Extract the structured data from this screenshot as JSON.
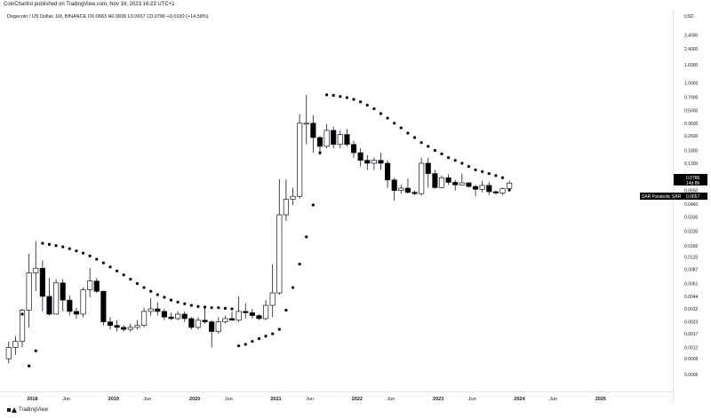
{
  "header": {
    "published": "CoinChartist published on TradingView.com, Nov 16, 2023 16:23 UTC+1"
  },
  "info": {
    "symbol": "Dogecoin / US Dollar, 1M, BINANCE",
    "open": "O0.0683",
    "high": "H0.0836",
    "low": "L0.0657",
    "close": "C0.0786",
    "change": "+0.0100 (+14.58%)"
  },
  "footer": {
    "brand": "TradingView"
  },
  "price_tag": {
    "value": "0.0786",
    "countdown": "14d 8h"
  },
  "sar_tag": {
    "label": "SAR Parabolic SAR",
    "value": "0.0657"
  },
  "colors": {
    "bull_body": "#ffffff",
    "bear_body": "#000000",
    "wick": "#131722",
    "sar": "#000000",
    "tag_bg": "#000000"
  },
  "chart_data": {
    "type": "candlestick",
    "title": "",
    "y_axis": {
      "unit": "USD",
      "scale": "log",
      "ticks": [
        "3.4000",
        "2.4000",
        "1.6000",
        "1.0000",
        "0.7000",
        "0.5000",
        "0.3600",
        "0.2600",
        "0.1800",
        "0.1300",
        "0.0900",
        "0.0650",
        "0.0460",
        "0.0330",
        "0.0230",
        "0.0160",
        "0.0120",
        "0.0087",
        "0.0061",
        "0.0044",
        "0.0032",
        "0.0023",
        "0.0017",
        "0.0012",
        "0.0009",
        "0.0006"
      ],
      "tick_values": [
        3.4,
        2.4,
        1.6,
        1.0,
        0.7,
        0.5,
        0.36,
        0.26,
        0.18,
        0.13,
        0.09,
        0.065,
        0.046,
        0.033,
        0.023,
        0.016,
        0.012,
        0.0087,
        0.0061,
        0.0044,
        0.0032,
        0.0023,
        0.0017,
        0.0012,
        0.0009,
        0.0006
      ],
      "range": [
        0.00042,
        4.2
      ]
    },
    "x_axis": {
      "labels": [
        {
          "text": "2018",
          "date": "2018-01",
          "major": true
        },
        {
          "text": "Jun",
          "date": "2018-06",
          "major": false
        },
        {
          "text": "2019",
          "date": "2019-01",
          "major": true
        },
        {
          "text": "Jun",
          "date": "2019-06",
          "major": false
        },
        {
          "text": "2020",
          "date": "2020-01",
          "major": true
        },
        {
          "text": "Jun",
          "date": "2020-06",
          "major": false
        },
        {
          "text": "2021",
          "date": "2021-01",
          "major": true
        },
        {
          "text": "Jun",
          "date": "2021-06",
          "major": false
        },
        {
          "text": "2022",
          "date": "2022-01",
          "major": true
        },
        {
          "text": "Jun",
          "date": "2022-06",
          "major": false
        },
        {
          "text": "2023",
          "date": "2023-01",
          "major": true
        },
        {
          "text": "Jun",
          "date": "2023-06",
          "major": false
        },
        {
          "text": "2024",
          "date": "2024-01",
          "major": true
        },
        {
          "text": "Jun",
          "date": "2024-06",
          "major": false
        },
        {
          "text": "2025",
          "date": "2025-01",
          "major": true
        }
      ],
      "start": "2017-09",
      "end": "2025-10"
    },
    "candles": [
      {
        "date": "2017-09",
        "o": 0.0009,
        "h": 0.0014,
        "l": 0.0008,
        "c": 0.0012
      },
      {
        "date": "2017-10",
        "o": 0.0012,
        "h": 0.0016,
        "l": 0.001,
        "c": 0.0014
      },
      {
        "date": "2017-11",
        "o": 0.0014,
        "h": 0.0032,
        "l": 0.0012,
        "c": 0.0031
      },
      {
        "date": "2017-12",
        "o": 0.0031,
        "h": 0.013,
        "l": 0.002,
        "c": 0.008
      },
      {
        "date": "2018-01",
        "o": 0.008,
        "h": 0.018,
        "l": 0.005,
        "c": 0.009
      },
      {
        "date": "2018-02",
        "o": 0.009,
        "h": 0.011,
        "l": 0.003,
        "c": 0.0044
      },
      {
        "date": "2018-03",
        "o": 0.0044,
        "h": 0.007,
        "l": 0.0027,
        "c": 0.0028
      },
      {
        "date": "2018-04",
        "o": 0.0028,
        "h": 0.0068,
        "l": 0.0028,
        "c": 0.0062
      },
      {
        "date": "2018-05",
        "o": 0.0062,
        "h": 0.0068,
        "l": 0.003,
        "c": 0.004
      },
      {
        "date": "2018-06",
        "o": 0.004,
        "h": 0.0045,
        "l": 0.0027,
        "c": 0.003
      },
      {
        "date": "2018-07",
        "o": 0.003,
        "h": 0.0033,
        "l": 0.0025,
        "c": 0.0028
      },
      {
        "date": "2018-08",
        "o": 0.0028,
        "h": 0.0055,
        "l": 0.0026,
        "c": 0.0052
      },
      {
        "date": "2018-09",
        "o": 0.0052,
        "h": 0.009,
        "l": 0.0043,
        "c": 0.0065
      },
      {
        "date": "2018-10",
        "o": 0.0065,
        "h": 0.007,
        "l": 0.0048,
        "c": 0.005
      },
      {
        "date": "2018-11",
        "o": 0.005,
        "h": 0.0051,
        "l": 0.0021,
        "c": 0.0023
      },
      {
        "date": "2018-12",
        "o": 0.0023,
        "h": 0.0026,
        "l": 0.0019,
        "c": 0.0021
      },
      {
        "date": "2019-01",
        "o": 0.0021,
        "h": 0.0024,
        "l": 0.0018,
        "c": 0.002
      },
      {
        "date": "2019-02",
        "o": 0.002,
        "h": 0.0021,
        "l": 0.0018,
        "c": 0.0019
      },
      {
        "date": "2019-03",
        "o": 0.0019,
        "h": 0.0022,
        "l": 0.0018,
        "c": 0.002
      },
      {
        "date": "2019-04",
        "o": 0.002,
        "h": 0.0024,
        "l": 0.0019,
        "c": 0.0021
      },
      {
        "date": "2019-05",
        "o": 0.0021,
        "h": 0.0033,
        "l": 0.002,
        "c": 0.003
      },
      {
        "date": "2019-06",
        "o": 0.003,
        "h": 0.0042,
        "l": 0.0027,
        "c": 0.0032
      },
      {
        "date": "2019-07",
        "o": 0.0032,
        "h": 0.0038,
        "l": 0.0027,
        "c": 0.003
      },
      {
        "date": "2019-08",
        "o": 0.003,
        "h": 0.0032,
        "l": 0.0024,
        "c": 0.0026
      },
      {
        "date": "2019-09",
        "o": 0.0026,
        "h": 0.0029,
        "l": 0.0024,
        "c": 0.0025
      },
      {
        "date": "2019-10",
        "o": 0.0025,
        "h": 0.003,
        "l": 0.0024,
        "c": 0.0028
      },
      {
        "date": "2019-11",
        "o": 0.0028,
        "h": 0.003,
        "l": 0.0023,
        "c": 0.0025
      },
      {
        "date": "2019-12",
        "o": 0.0025,
        "h": 0.0026,
        "l": 0.0019,
        "c": 0.002
      },
      {
        "date": "2020-01",
        "o": 0.002,
        "h": 0.0026,
        "l": 0.0019,
        "c": 0.0024
      },
      {
        "date": "2020-02",
        "o": 0.0024,
        "h": 0.0033,
        "l": 0.0022,
        "c": 0.0023
      },
      {
        "date": "2020-03",
        "o": 0.0023,
        "h": 0.0024,
        "l": 0.0012,
        "c": 0.0018
      },
      {
        "date": "2020-04",
        "o": 0.0018,
        "h": 0.0026,
        "l": 0.0017,
        "c": 0.0023
      },
      {
        "date": "2020-05",
        "o": 0.0023,
        "h": 0.0027,
        "l": 0.0022,
        "c": 0.0025
      },
      {
        "date": "2020-06",
        "o": 0.0025,
        "h": 0.003,
        "l": 0.0024,
        "c": 0.0024
      },
      {
        "date": "2020-07",
        "o": 0.0024,
        "h": 0.0044,
        "l": 0.0023,
        "c": 0.003
      },
      {
        "date": "2020-08",
        "o": 0.003,
        "h": 0.0037,
        "l": 0.0025,
        "c": 0.0029
      },
      {
        "date": "2020-09",
        "o": 0.0029,
        "h": 0.0032,
        "l": 0.0025,
        "c": 0.0027
      },
      {
        "date": "2020-10",
        "o": 0.0027,
        "h": 0.0028,
        "l": 0.0024,
        "c": 0.0025
      },
      {
        "date": "2020-11",
        "o": 0.0025,
        "h": 0.004,
        "l": 0.0024,
        "c": 0.0035
      },
      {
        "date": "2020-12",
        "o": 0.0035,
        "h": 0.01,
        "l": 0.0026,
        "c": 0.0048
      },
      {
        "date": "2021-01",
        "o": 0.0048,
        "h": 0.087,
        "l": 0.0046,
        "c": 0.035
      },
      {
        "date": "2021-02",
        "o": 0.035,
        "h": 0.087,
        "l": 0.03,
        "c": 0.052
      },
      {
        "date": "2021-03",
        "o": 0.052,
        "h": 0.07,
        "l": 0.045,
        "c": 0.056
      },
      {
        "date": "2021-04",
        "o": 0.056,
        "h": 0.45,
        "l": 0.053,
        "c": 0.36
      },
      {
        "date": "2021-05",
        "o": 0.36,
        "h": 0.74,
        "l": 0.21,
        "c": 0.36
      },
      {
        "date": "2021-06",
        "o": 0.36,
        "h": 0.44,
        "l": 0.17,
        "c": 0.25
      },
      {
        "date": "2021-07",
        "o": 0.25,
        "h": 0.26,
        "l": 0.16,
        "c": 0.2
      },
      {
        "date": "2021-08",
        "o": 0.2,
        "h": 0.35,
        "l": 0.19,
        "c": 0.3
      },
      {
        "date": "2021-09",
        "o": 0.3,
        "h": 0.33,
        "l": 0.19,
        "c": 0.21
      },
      {
        "date": "2021-10",
        "o": 0.21,
        "h": 0.3,
        "l": 0.19,
        "c": 0.27
      },
      {
        "date": "2021-11",
        "o": 0.27,
        "h": 0.31,
        "l": 0.2,
        "c": 0.21
      },
      {
        "date": "2021-12",
        "o": 0.21,
        "h": 0.23,
        "l": 0.15,
        "c": 0.17
      },
      {
        "date": "2022-01",
        "o": 0.17,
        "h": 0.19,
        "l": 0.12,
        "c": 0.14
      },
      {
        "date": "2022-02",
        "o": 0.14,
        "h": 0.16,
        "l": 0.11,
        "c": 0.13
      },
      {
        "date": "2022-03",
        "o": 0.13,
        "h": 0.15,
        "l": 0.11,
        "c": 0.14
      },
      {
        "date": "2022-04",
        "o": 0.14,
        "h": 0.17,
        "l": 0.11,
        "c": 0.13
      },
      {
        "date": "2022-05",
        "o": 0.13,
        "h": 0.14,
        "l": 0.07,
        "c": 0.085
      },
      {
        "date": "2022-06",
        "o": 0.085,
        "h": 0.09,
        "l": 0.05,
        "c": 0.065
      },
      {
        "date": "2022-07",
        "o": 0.065,
        "h": 0.076,
        "l": 0.06,
        "c": 0.069
      },
      {
        "date": "2022-08",
        "o": 0.069,
        "h": 0.088,
        "l": 0.06,
        "c": 0.062
      },
      {
        "date": "2022-09",
        "o": 0.062,
        "h": 0.065,
        "l": 0.058,
        "c": 0.06
      },
      {
        "date": "2022-10",
        "o": 0.06,
        "h": 0.15,
        "l": 0.057,
        "c": 0.13
      },
      {
        "date": "2022-11",
        "o": 0.13,
        "h": 0.15,
        "l": 0.07,
        "c": 0.1
      },
      {
        "date": "2022-12",
        "o": 0.1,
        "h": 0.11,
        "l": 0.068,
        "c": 0.07
      },
      {
        "date": "2023-01",
        "o": 0.07,
        "h": 0.095,
        "l": 0.069,
        "c": 0.09
      },
      {
        "date": "2023-02",
        "o": 0.09,
        "h": 0.098,
        "l": 0.075,
        "c": 0.08
      },
      {
        "date": "2023-03",
        "o": 0.08,
        "h": 0.085,
        "l": 0.065,
        "c": 0.075
      },
      {
        "date": "2023-04",
        "o": 0.075,
        "h": 0.1,
        "l": 0.074,
        "c": 0.079
      },
      {
        "date": "2023-05",
        "o": 0.079,
        "h": 0.08,
        "l": 0.07,
        "c": 0.072
      },
      {
        "date": "2023-06",
        "o": 0.072,
        "h": 0.075,
        "l": 0.056,
        "c": 0.067
      },
      {
        "date": "2023-07",
        "o": 0.067,
        "h": 0.083,
        "l": 0.062,
        "c": 0.074
      },
      {
        "date": "2023-08",
        "o": 0.074,
        "h": 0.081,
        "l": 0.058,
        "c": 0.063
      },
      {
        "date": "2023-09",
        "o": 0.063,
        "h": 0.065,
        "l": 0.059,
        "c": 0.061
      },
      {
        "date": "2023-10",
        "o": 0.061,
        "h": 0.07,
        "l": 0.058,
        "c": 0.068
      },
      {
        "date": "2023-11",
        "o": 0.0683,
        "h": 0.0836,
        "l": 0.0657,
        "c": 0.0786
      }
    ],
    "sar": [
      {
        "date": "2017-11",
        "v": 0.0028
      },
      {
        "date": "2017-12",
        "v": 0.00075
      },
      {
        "date": "2018-01",
        "v": 0.0011
      },
      {
        "date": "2018-02",
        "v": 0.017
      },
      {
        "date": "2018-03",
        "v": 0.0165
      },
      {
        "date": "2018-04",
        "v": 0.016
      },
      {
        "date": "2018-05",
        "v": 0.0155
      },
      {
        "date": "2018-06",
        "v": 0.0148
      },
      {
        "date": "2018-07",
        "v": 0.014
      },
      {
        "date": "2018-08",
        "v": 0.0132
      },
      {
        "date": "2018-09",
        "v": 0.0123
      },
      {
        "date": "2018-10",
        "v": 0.0113
      },
      {
        "date": "2018-11",
        "v": 0.0103
      },
      {
        "date": "2018-12",
        "v": 0.0093
      },
      {
        "date": "2019-01",
        "v": 0.0084
      },
      {
        "date": "2019-02",
        "v": 0.0076
      },
      {
        "date": "2019-03",
        "v": 0.0068
      },
      {
        "date": "2019-04",
        "v": 0.0061
      },
      {
        "date": "2019-05",
        "v": 0.0055
      },
      {
        "date": "2019-06",
        "v": 0.005
      },
      {
        "date": "2019-07",
        "v": 0.0046
      },
      {
        "date": "2019-08",
        "v": 0.0043
      },
      {
        "date": "2019-09",
        "v": 0.004
      },
      {
        "date": "2019-10",
        "v": 0.0038
      },
      {
        "date": "2019-11",
        "v": 0.00365
      },
      {
        "date": "2019-12",
        "v": 0.0035
      },
      {
        "date": "2020-01",
        "v": 0.0034
      },
      {
        "date": "2020-02",
        "v": 0.00335
      },
      {
        "date": "2020-03",
        "v": 0.0033
      },
      {
        "date": "2020-04",
        "v": 0.0033
      },
      {
        "date": "2020-05",
        "v": 0.00325
      },
      {
        "date": "2020-06",
        "v": 0.0032
      },
      {
        "date": "2020-07",
        "v": 0.00125
      },
      {
        "date": "2020-08",
        "v": 0.0013
      },
      {
        "date": "2020-09",
        "v": 0.0014
      },
      {
        "date": "2020-10",
        "v": 0.0015
      },
      {
        "date": "2020-11",
        "v": 0.0016
      },
      {
        "date": "2020-12",
        "v": 0.0017
      },
      {
        "date": "2021-01",
        "v": 0.0019
      },
      {
        "date": "2021-02",
        "v": 0.0031
      },
      {
        "date": "2021-03",
        "v": 0.0055
      },
      {
        "date": "2021-04",
        "v": 0.01
      },
      {
        "date": "2021-05",
        "v": 0.02
      },
      {
        "date": "2021-06",
        "v": 0.045
      },
      {
        "date": "2021-07",
        "v": 0.17
      },
      {
        "date": "2021-08",
        "v": 0.74
      },
      {
        "date": "2021-09",
        "v": 0.73
      },
      {
        "date": "2021-10",
        "v": 0.71
      },
      {
        "date": "2021-11",
        "v": 0.69
      },
      {
        "date": "2021-12",
        "v": 0.66
      },
      {
        "date": "2022-01",
        "v": 0.62
      },
      {
        "date": "2022-02",
        "v": 0.57
      },
      {
        "date": "2022-03",
        "v": 0.52
      },
      {
        "date": "2022-04",
        "v": 0.46
      },
      {
        "date": "2022-05",
        "v": 0.41
      },
      {
        "date": "2022-06",
        "v": 0.36
      },
      {
        "date": "2022-07",
        "v": 0.32
      },
      {
        "date": "2022-08",
        "v": 0.28
      },
      {
        "date": "2022-09",
        "v": 0.25
      },
      {
        "date": "2022-10",
        "v": 0.22
      },
      {
        "date": "2022-11",
        "v": 0.2
      },
      {
        "date": "2022-12",
        "v": 0.18
      },
      {
        "date": "2023-01",
        "v": 0.165
      },
      {
        "date": "2023-02",
        "v": 0.15
      },
      {
        "date": "2023-03",
        "v": 0.14
      },
      {
        "date": "2023-04",
        "v": 0.13
      },
      {
        "date": "2023-05",
        "v": 0.12
      },
      {
        "date": "2023-06",
        "v": 0.11
      },
      {
        "date": "2023-07",
        "v": 0.105
      },
      {
        "date": "2023-08",
        "v": 0.1
      },
      {
        "date": "2023-09",
        "v": 0.095
      },
      {
        "date": "2023-10",
        "v": 0.09
      },
      {
        "date": "2023-11",
        "v": 0.0657
      }
    ],
    "grid": false,
    "legend": "none"
  }
}
